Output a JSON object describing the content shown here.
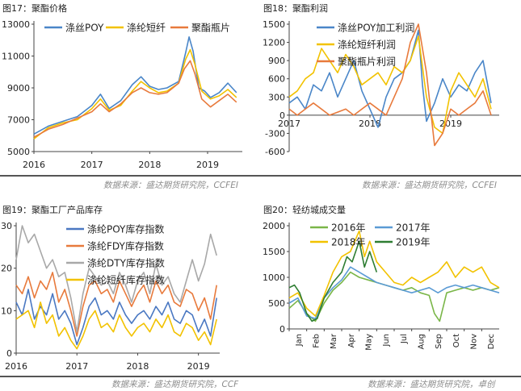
{
  "charts": [
    {
      "title": "图17：聚酯价格"
    },
    {
      "title": "图18：聚酯利润"
    },
    {
      "title": "图19：聚酯工厂产品库存"
    },
    {
      "title": "图20：轻纺城成交量"
    }
  ],
  "sources": {
    "top_left": "数据来源：盛达期货研究院，CCFEI",
    "top_right": "数据来源：盛达期货研究院，CCFEI",
    "bottom_left": "数据来源：盛达期货研究院，CCF",
    "bottom_right": "数据来源：盛达期货研究院，卓创"
  },
  "chart_data": [
    {
      "type": "line",
      "title": "图17：聚酯价格",
      "xlabel": "",
      "ylabel": "",
      "x_ticks": [
        "2016",
        "2017",
        "2018",
        "2019"
      ],
      "y_ticks": [
        5000,
        7000,
        9000,
        11000,
        13000
      ],
      "ylim": [
        5000,
        13000
      ],
      "xlim": [
        2016.0,
        2019.6
      ],
      "grid": false,
      "legend": "top",
      "series": [
        {
          "name": "涤丝POY",
          "color": "#4a86c8",
          "x": [
            2016.0,
            2016.25,
            2016.5,
            2016.75,
            2017.0,
            2017.15,
            2017.3,
            2017.5,
            2017.7,
            2017.85,
            2018.0,
            2018.15,
            2018.3,
            2018.5,
            2018.62,
            2018.68,
            2018.75,
            2018.85,
            2018.95,
            2019.05,
            2019.2,
            2019.35,
            2019.5
          ],
          "y": [
            6100,
            6600,
            6900,
            7200,
            7900,
            8600,
            7700,
            8200,
            9200,
            9700,
            9100,
            8900,
            9000,
            9400,
            11200,
            12200,
            11300,
            9000,
            8800,
            8400,
            8700,
            9300,
            8700
          ]
        },
        {
          "name": "涤纶短纤",
          "color": "#f2c200",
          "x": [
            2016.0,
            2016.25,
            2016.5,
            2016.75,
            2017.0,
            2017.15,
            2017.3,
            2017.5,
            2017.7,
            2017.85,
            2018.0,
            2018.15,
            2018.3,
            2018.5,
            2018.62,
            2018.7,
            2018.78,
            2018.9,
            2019.05,
            2019.2,
            2019.35,
            2019.5
          ],
          "y": [
            5800,
            6500,
            6800,
            7000,
            7700,
            8300,
            7600,
            7900,
            8800,
            9400,
            9000,
            8700,
            8800,
            9300,
            10800,
            11400,
            10500,
            8800,
            8300,
            8500,
            8900,
            8400
          ]
        },
        {
          "name": "聚酯瓶片",
          "color": "#e87a3c",
          "x": [
            2016.0,
            2016.25,
            2016.5,
            2016.75,
            2017.0,
            2017.15,
            2017.3,
            2017.5,
            2017.7,
            2017.85,
            2018.0,
            2018.15,
            2018.3,
            2018.5,
            2018.6,
            2018.7,
            2018.78,
            2018.9,
            2019.05,
            2019.2,
            2019.35,
            2019.5
          ],
          "y": [
            5900,
            6400,
            6700,
            7100,
            7500,
            8000,
            7500,
            8000,
            8700,
            9000,
            8700,
            8600,
            8700,
            9300,
            10200,
            10700,
            9900,
            8300,
            7800,
            8200,
            8600,
            8100
          ]
        }
      ]
    },
    {
      "type": "line",
      "title": "图18：聚酯利润",
      "xlabel": "",
      "ylabel": "",
      "x_ticks": [
        "2017",
        "2018",
        "2019"
      ],
      "y_ticks": [
        -600,
        -300,
        0,
        300,
        600,
        900,
        1200,
        1500
      ],
      "ylim": [
        -600,
        1500
      ],
      "xlim": [
        2017.0,
        2019.6
      ],
      "grid": false,
      "legend": "top",
      "series": [
        {
          "name": "涤丝POY加工利润",
          "color": "#4a86c8",
          "x": [
            2017.0,
            2017.1,
            2017.2,
            2017.3,
            2017.4,
            2017.5,
            2017.6,
            2017.7,
            2017.8,
            2017.9,
            2018.0,
            2018.1,
            2018.2,
            2018.3,
            2018.4,
            2018.5,
            2018.6,
            2018.65,
            2018.7,
            2018.8,
            2018.9,
            2019.0,
            2019.1,
            2019.2,
            2019.3,
            2019.4,
            2019.5
          ],
          "y": [
            200,
            300,
            100,
            500,
            400,
            700,
            300,
            600,
            900,
            400,
            100,
            -200,
            300,
            600,
            700,
            900,
            1400,
            500,
            -100,
            200,
            600,
            300,
            500,
            400,
            700,
            900,
            200
          ]
        },
        {
          "name": "涤纶短纤利润",
          "color": "#f2c200",
          "x": [
            2017.0,
            2017.1,
            2017.2,
            2017.3,
            2017.4,
            2017.5,
            2017.6,
            2017.7,
            2017.8,
            2017.9,
            2018.0,
            2018.1,
            2018.2,
            2018.3,
            2018.4,
            2018.5,
            2018.6,
            2018.7,
            2018.8,
            2018.9,
            2019.0,
            2019.1,
            2019.2,
            2019.3,
            2019.4,
            2019.5
          ],
          "y": [
            300,
            400,
            600,
            700,
            1100,
            900,
            700,
            1000,
            800,
            500,
            600,
            700,
            500,
            800,
            700,
            900,
            1300,
            300,
            -200,
            -300,
            400,
            700,
            500,
            300,
            600,
            100
          ]
        },
        {
          "name": "聚酯瓶片利润",
          "color": "#e87a3c",
          "x": [
            2017.0,
            2017.1,
            2017.2,
            2017.3,
            2017.4,
            2017.5,
            2017.6,
            2017.7,
            2017.8,
            2017.9,
            2018.0,
            2018.1,
            2018.2,
            2018.3,
            2018.4,
            2018.5,
            2018.6,
            2018.7,
            2018.8,
            2018.9,
            2019.0,
            2019.1,
            2019.2,
            2019.3,
            2019.4,
            2019.5
          ],
          "y": [
            100,
            0,
            100,
            200,
            100,
            0,
            50,
            100,
            0,
            100,
            200,
            100,
            0,
            300,
            600,
            1200,
            1500,
            700,
            -500,
            -300,
            100,
            0,
            100,
            200,
            400,
            0
          ]
        }
      ]
    },
    {
      "type": "line",
      "title": "图19：聚酯工厂产品库存",
      "xlabel": "",
      "ylabel": "",
      "x_ticks": [
        "2016",
        "2017",
        "2018",
        "2019"
      ],
      "y_ticks": [
        0,
        10,
        20,
        30
      ],
      "ylim": [
        0,
        30
      ],
      "xlim": [
        2016.0,
        2019.35
      ],
      "grid": false,
      "legend": "top",
      "series": [
        {
          "name": "涤纶POY库存指数",
          "color": "#4a78c2",
          "x": [
            2016.0,
            2016.1,
            2016.2,
            2016.3,
            2016.4,
            2016.5,
            2016.6,
            2016.7,
            2016.8,
            2016.9,
            2017.0,
            2017.1,
            2017.2,
            2017.3,
            2017.4,
            2017.5,
            2017.6,
            2017.7,
            2017.8,
            2017.9,
            2018.0,
            2018.1,
            2018.2,
            2018.3,
            2018.4,
            2018.5,
            2018.6,
            2018.7,
            2018.8,
            2018.9,
            2019.0,
            2019.1,
            2019.2,
            2019.3
          ],
          "y": [
            12,
            9,
            15,
            8,
            11,
            9,
            14,
            8,
            10,
            7,
            2,
            6,
            11,
            13,
            9,
            10,
            8,
            12,
            9,
            7,
            9,
            10,
            8,
            11,
            9,
            12,
            8,
            7,
            10,
            9,
            5,
            8,
            4,
            13
          ]
        },
        {
          "name": "涤纶FDY库存指数",
          "color": "#e87a3c",
          "x": [
            2016.0,
            2016.1,
            2016.2,
            2016.3,
            2016.4,
            2016.5,
            2016.6,
            2016.7,
            2016.8,
            2016.9,
            2017.0,
            2017.1,
            2017.2,
            2017.3,
            2017.4,
            2017.5,
            2017.6,
            2017.7,
            2017.8,
            2017.9,
            2018.0,
            2018.1,
            2018.2,
            2018.3,
            2018.4,
            2018.5,
            2018.6,
            2018.7,
            2018.8,
            2018.9,
            2019.0,
            2019.1,
            2019.2,
            2019.3
          ],
          "y": [
            16,
            14,
            18,
            13,
            17,
            15,
            19,
            12,
            15,
            10,
            4,
            11,
            16,
            17,
            14,
            15,
            12,
            17,
            14,
            11,
            14,
            16,
            12,
            17,
            14,
            16,
            12,
            11,
            15,
            14,
            10,
            13,
            8,
            16
          ]
        },
        {
          "name": "涤纶DTY库存指数",
          "color": "#a8a8a8",
          "x": [
            2016.0,
            2016.1,
            2016.2,
            2016.3,
            2016.4,
            2016.5,
            2016.6,
            2016.7,
            2016.8,
            2016.9,
            2017.0,
            2017.1,
            2017.2,
            2017.3,
            2017.4,
            2017.5,
            2017.6,
            2017.7,
            2017.8,
            2017.9,
            2018.0,
            2018.1,
            2018.2,
            2018.3,
            2018.4,
            2018.5,
            2018.6,
            2018.7,
            2018.8,
            2018.9,
            2019.0,
            2019.1,
            2019.2,
            2019.3
          ],
          "y": [
            22,
            30,
            26,
            28,
            24,
            20,
            22,
            18,
            19,
            13,
            5,
            14,
            20,
            18,
            16,
            17,
            14,
            19,
            16,
            12,
            17,
            19,
            14,
            21,
            16,
            18,
            14,
            12,
            17,
            22,
            17,
            21,
            28,
            23
          ]
        },
        {
          "name": "涤纶短纤库存指数",
          "color": "#f2c200",
          "x": [
            2016.0,
            2016.1,
            2016.2,
            2016.3,
            2016.4,
            2016.5,
            2016.6,
            2016.7,
            2016.8,
            2016.9,
            2017.0,
            2017.1,
            2017.2,
            2017.3,
            2017.4,
            2017.5,
            2017.6,
            2017.7,
            2017.8,
            2017.9,
            2018.0,
            2018.1,
            2018.2,
            2018.3,
            2018.4,
            2018.5,
            2018.6,
            2018.7,
            2018.8,
            2018.9,
            2019.0,
            2019.1,
            2019.2,
            2019.3
          ],
          "y": [
            8,
            9,
            10,
            6,
            12,
            7,
            9,
            4,
            6,
            3,
            1,
            4,
            8,
            10,
            6,
            7,
            5,
            9,
            6,
            4,
            6,
            7,
            5,
            8,
            6,
            9,
            5,
            4,
            7,
            6,
            3,
            5,
            2,
            8
          ]
        }
      ]
    },
    {
      "type": "line",
      "title": "图20：轻纺城成交量",
      "xlabel": "",
      "ylabel": "",
      "x_ticks": [
        "Jan",
        "Feb",
        "Mar",
        "Apr",
        "May",
        "Jun",
        "Jul",
        "Aug",
        "Sep",
        "Oct",
        "Nov",
        "Dec"
      ],
      "y_ticks": [
        0,
        500,
        1000,
        1500,
        2000
      ],
      "ylim": [
        0,
        2000
      ],
      "xlim": [
        0,
        12
      ],
      "grid": false,
      "legend": "top",
      "series": [
        {
          "name": "2016年",
          "color": "#7ab648",
          "x": [
            0,
            0.5,
            1,
            1.5,
            2,
            2.5,
            3,
            3.5,
            4,
            4.5,
            5,
            5.5,
            6,
            6.5,
            7,
            7.5,
            8,
            8.3,
            8.6,
            9,
            9.5,
            10,
            10.5,
            11,
            11.5,
            12
          ],
          "y": [
            400,
            550,
            300,
            150,
            500,
            750,
            900,
            1100,
            1000,
            950,
            900,
            850,
            800,
            750,
            800,
            700,
            650,
            300,
            150,
            700,
            750,
            800,
            750,
            800,
            750,
            800
          ]
        },
        {
          "name": "2017年",
          "color": "#5b9bd5",
          "x": [
            0,
            0.5,
            1,
            1.5,
            2,
            2.5,
            3,
            3.5,
            4,
            4.5,
            5,
            5.5,
            6,
            6.5,
            7,
            7.5,
            8,
            8.5,
            9,
            9.5,
            10,
            10.5,
            11,
            11.5,
            12
          ],
          "y": [
            500,
            600,
            250,
            200,
            600,
            800,
            950,
            1200,
            1100,
            1000,
            900,
            850,
            800,
            750,
            700,
            750,
            800,
            700,
            800,
            850,
            800,
            850,
            800,
            750,
            700
          ]
        },
        {
          "name": "2018年",
          "color": "#f2c200",
          "x": [
            0,
            0.5,
            1,
            1.5,
            2,
            2.5,
            3,
            3.5,
            4,
            4.3,
            4.6,
            5,
            5.5,
            6,
            6.5,
            7,
            7.5,
            8,
            8.5,
            9,
            9.5,
            10,
            10.5,
            11,
            11.5,
            12
          ],
          "y": [
            600,
            700,
            400,
            250,
            650,
            1100,
            1400,
            1500,
            1900,
            1400,
            1700,
            1300,
            1100,
            900,
            850,
            1000,
            900,
            1000,
            1100,
            1300,
            1000,
            1200,
            1100,
            1200,
            900,
            800
          ]
        },
        {
          "name": "2019年",
          "color": "#2e7d32",
          "x": [
            0,
            0.3,
            0.6,
            1,
            1.3,
            1.6,
            2,
            2.5,
            3,
            3.3,
            3.6,
            4,
            4.3,
            4.6,
            5
          ],
          "y": [
            800,
            850,
            700,
            300,
            150,
            200,
            600,
            900,
            1100,
            1400,
            1300,
            1700,
            1200,
            1500,
            1100
          ]
        }
      ]
    }
  ]
}
